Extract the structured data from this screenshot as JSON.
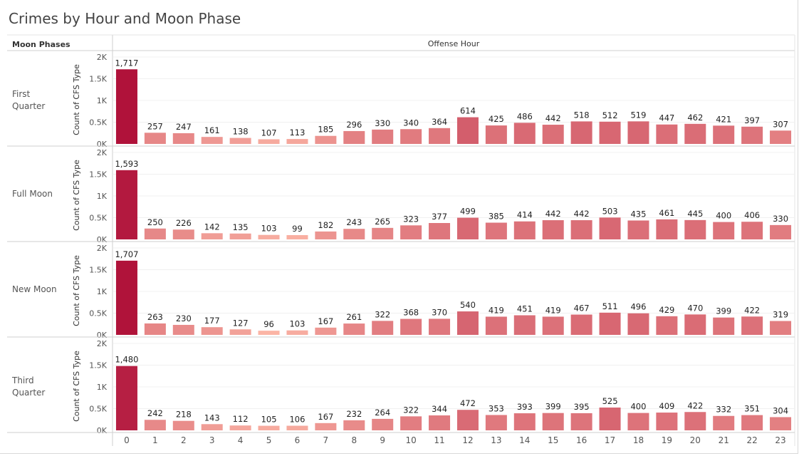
{
  "title": "Crimes by Hour and Moon Phase",
  "chart_data": {
    "type": "bar",
    "title": "Crimes by Hour and Moon Phase",
    "row_header": "Moon Phases",
    "column_header": "Offense Hour",
    "ylabel": "Count of CFS Type",
    "ylim": [
      0,
      2000
    ],
    "y_ticks": [
      "0K",
      "0.5K",
      "1K",
      "1.5K",
      "2K"
    ],
    "grid": true,
    "categories": [
      "0",
      "1",
      "2",
      "3",
      "4",
      "5",
      "6",
      "7",
      "8",
      "9",
      "10",
      "11",
      "12",
      "13",
      "14",
      "15",
      "16",
      "17",
      "18",
      "19",
      "20",
      "21",
      "22",
      "23"
    ],
    "series": [
      {
        "name": "First Quarter",
        "values": [
          1717,
          257,
          247,
          161,
          138,
          107,
          113,
          185,
          296,
          330,
          340,
          364,
          614,
          425,
          486,
          442,
          518,
          512,
          519,
          447,
          462,
          421,
          397,
          307
        ]
      },
      {
        "name": "Full Moon",
        "values": [
          1593,
          250,
          226,
          142,
          135,
          103,
          99,
          182,
          243,
          265,
          323,
          377,
          499,
          385,
          414,
          442,
          442,
          503,
          435,
          461,
          445,
          400,
          406,
          330
        ]
      },
      {
        "name": "New Moon",
        "values": [
          1707,
          263,
          230,
          177,
          127,
          96,
          103,
          167,
          261,
          322,
          368,
          370,
          540,
          419,
          451,
          419,
          467,
          511,
          496,
          429,
          470,
          399,
          422,
          319
        ]
      },
      {
        "name": "Third Quarter",
        "values": [
          1480,
          242,
          218,
          143,
          112,
          105,
          106,
          167,
          232,
          264,
          322,
          344,
          472,
          353,
          393,
          399,
          395,
          525,
          400,
          409,
          422,
          332,
          351,
          304
        ]
      }
    ],
    "color_range": [
      "#fbb4a5",
      "#b0123a"
    ]
  }
}
